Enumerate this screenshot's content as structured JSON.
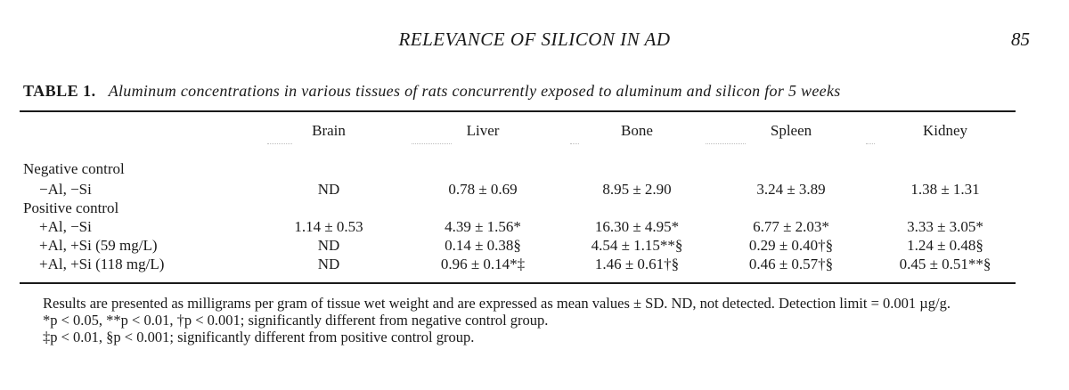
{
  "running_head": "RELEVANCE OF SILICON IN AD",
  "page_number": "85",
  "table": {
    "label": "TABLE 1.",
    "title": "Aluminum concentrations in various tissues of rats concurrently exposed to aluminum and silicon for 5 weeks",
    "columns": [
      "Brain",
      "Liver",
      "Bone",
      "Spleen",
      "Kidney"
    ],
    "groups": [
      {
        "label": "Negative control",
        "rows": [
          {
            "label": "−Al, −Si",
            "values": [
              "ND",
              "0.78 ± 0.69",
              "8.95 ± 2.90",
              "3.24 ± 3.89",
              "1.38 ± 1.31"
            ]
          }
        ]
      },
      {
        "label": "Positive control",
        "rows": [
          {
            "label": "+Al, −Si",
            "values": [
              "1.14 ± 0.53",
              "4.39 ± 1.56*",
              "16.30 ± 4.95*",
              "6.77 ± 2.03*",
              "3.33 ± 3.05*"
            ]
          },
          {
            "label": "+Al, +Si (59 mg/L)",
            "values": [
              "ND",
              "0.14 ± 0.38§",
              "4.54 ± 1.15**§",
              "0.29 ± 0.40†§",
              "1.24 ± 0.48§"
            ]
          },
          {
            "label": "+Al, +Si (118 mg/L)",
            "values": [
              "ND",
              "0.96 ± 0.14*‡",
              "1.46 ± 0.61†§",
              "0.46 ± 0.57†§",
              "0.45 ± 0.51**§"
            ]
          }
        ]
      }
    ]
  },
  "notes": {
    "results": "Results are presented as milligrams per gram of tissue wet weight and are expressed as mean values ± SD. ND, not detected. Detection limit = 0.001 µg/g.",
    "footnote_1": "*p < 0.05, **p < 0.01, †p < 0.001; significantly different from negative control group.",
    "footnote_2": "‡p < 0.01, §p < 0.001; significantly different from positive control group."
  }
}
